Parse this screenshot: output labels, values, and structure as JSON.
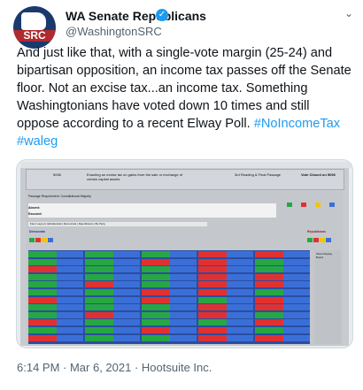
{
  "account": {
    "name": "WA Senate Republicans",
    "handle": "@WashingtonSRC",
    "avatar_text": "SRC",
    "verified_icon": "verified-badge-icon"
  },
  "tweet": {
    "text_main": "And just like that, with a single-vote margin (25-24) and bipartisan opposition, an income tax passes off the Senate floor. Not an excise tax...an income tax. Something Washingtonians have voted down 10 times and still oppose according to a recent Elway Poll.",
    "hashtags": "#NoIncomeTax #waleg",
    "timestamp": "6:14 PM · Mar 6, 2021 · Hootsuite Inc."
  },
  "media": {
    "bill": "5096",
    "description": "Enacting an excise tax on gains from the sale or exchange of certain capital assets",
    "stage": "3rd Reading & Final Passage",
    "status": "Vote Closed on 5096",
    "requirement": "Passage Requirement: Constitutional Majority",
    "absent_label": "Absent:",
    "excused_label": "Excused:",
    "tabs": "Floor Layout | Alphabetical | Democrats | Republicans | By Party",
    "democrats_label": "Democrats",
    "republicans_label": "Republicans",
    "side_label": "Show Display Board"
  },
  "colors": {
    "link": "#1d9bf0",
    "yea": "#27a744",
    "nay": "#e03131",
    "grid": "#2b4da0"
  }
}
